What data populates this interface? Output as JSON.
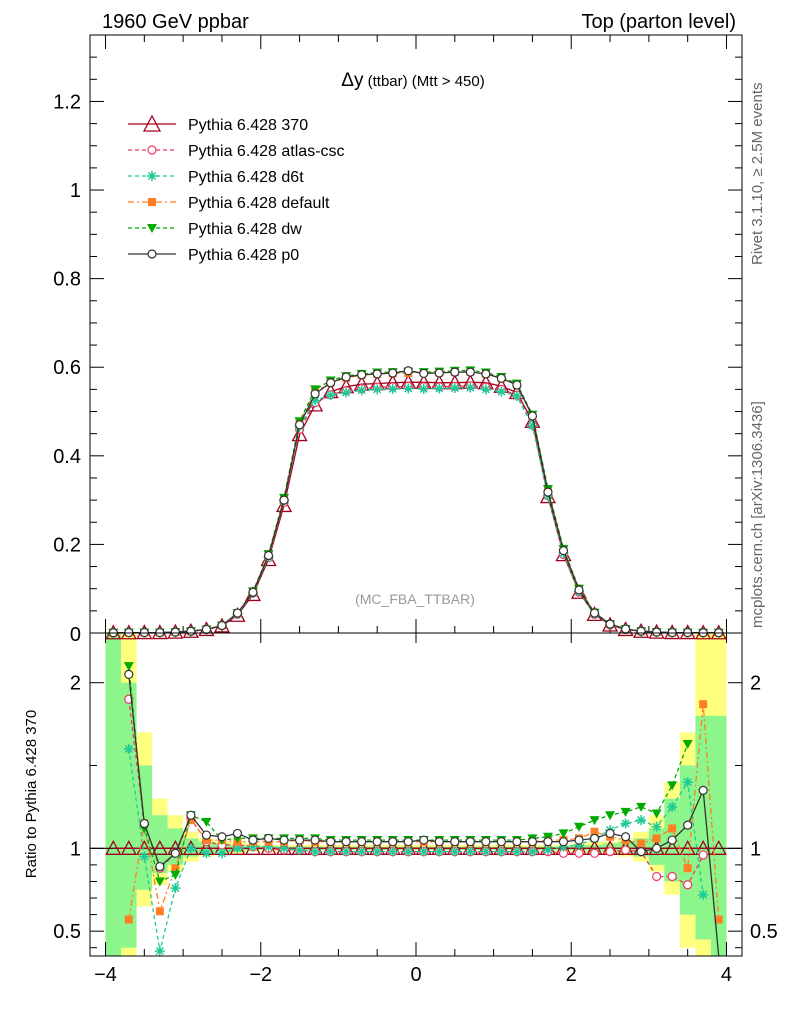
{
  "header": {
    "left": "1960 GeV ppbar",
    "right": "Top (parton level)"
  },
  "side_text": {
    "rivet": "Rivet 3.1.10, ≥ 2.5M events",
    "mcplots": "mcplots.cern.ch [arXiv:1306.3436]"
  },
  "chart_data": {
    "type": "line",
    "title_main": "Δy",
    "title_sub": " (ttbar) (Mtt > 450)",
    "watermark": "(MC_FBA_TTBAR)",
    "ratio_ylabel": "Ratio to Pythia 6.428 370",
    "xlim": [
      -4.2,
      4.2
    ],
    "ylim_main": [
      0,
      1.35
    ],
    "ylim_ratio": [
      0.35,
      2.3
    ],
    "x_ticks": [
      -4,
      -2,
      0,
      2,
      4
    ],
    "x_tick_labels": [
      "−4",
      "−2",
      "0",
      "2",
      "4"
    ],
    "main_y_ticks": [
      0.2,
      0.4,
      0.6,
      0.8,
      1,
      1.2
    ],
    "main_y_tick_labels": [
      "0.2",
      "0.4",
      "0.6",
      "0.8",
      "1",
      "1.2"
    ],
    "main_y_zero_label": "0",
    "ratio_y_ticks": [
      0.5,
      1,
      2
    ],
    "ratio_y_tick_labels": [
      "0.5",
      "1",
      "2"
    ],
    "x": [
      -3.9,
      -3.7,
      -3.5,
      -3.3,
      -3.1,
      -2.9,
      -2.7,
      -2.5,
      -2.3,
      -2.1,
      -1.9,
      -1.7,
      -1.5,
      -1.3,
      -1.1,
      -0.9,
      -0.7,
      -0.5,
      -0.3,
      -0.1,
      0.1,
      0.3,
      0.5,
      0.7,
      0.9,
      1.1,
      1.3,
      1.5,
      1.7,
      1.9,
      2.1,
      2.3,
      2.5,
      2.7,
      2.9,
      3.1,
      3.3,
      3.5,
      3.7,
      3.9
    ],
    "series": [
      {
        "name": "Pythia 6.428 370",
        "color": "#a0001e",
        "dash": "",
        "marker": "triangle-open",
        "values": [
          0.0005,
          0.0005,
          0.001,
          0.001,
          0.002,
          0.004,
          0.008,
          0.016,
          0.04,
          0.087,
          0.166,
          0.288,
          0.448,
          0.515,
          0.545,
          0.556,
          0.562,
          0.563,
          0.565,
          0.566,
          0.566,
          0.565,
          0.565,
          0.566,
          0.565,
          0.557,
          0.543,
          0.478,
          0.308,
          0.177,
          0.092,
          0.042,
          0.018,
          0.008,
          0.004,
          0.002,
          0.001,
          0.001,
          0.0005,
          0.0005
        ],
        "ratio": [
          1.0,
          1.0,
          1.0,
          1.0,
          1.0,
          1.0,
          1.0,
          1.0,
          1.0,
          1.0,
          1.0,
          1.0,
          1.0,
          1.0,
          1.0,
          1.0,
          1.0,
          1.0,
          1.0,
          1.0,
          1.0,
          1.0,
          1.0,
          1.0,
          1.0,
          1.0,
          1.0,
          1.0,
          1.0,
          1.0,
          1.0,
          1.0,
          1.0,
          1.0,
          1.0,
          1.0,
          1.0,
          1.0,
          1.0,
          1.0
        ]
      },
      {
        "name": "Pythia 6.428 atlas-csc",
        "color": "#ee3a5e",
        "dash": "4,3",
        "marker": "circle-open",
        "values": [
          0.0005,
          0.001,
          0.001,
          0.001,
          0.002,
          0.004,
          0.008,
          0.017,
          0.042,
          0.09,
          0.17,
          0.295,
          0.46,
          0.52,
          0.538,
          0.547,
          0.552,
          0.555,
          0.556,
          0.557,
          0.556,
          0.556,
          0.557,
          0.558,
          0.555,
          0.55,
          0.537,
          0.47,
          0.31,
          0.177,
          0.092,
          0.042,
          0.018,
          0.008,
          0.004,
          0.002,
          0.001,
          0.001,
          0.0005,
          0.0005
        ],
        "ratio": [
          null,
          1.9,
          1.15,
          0.88,
          0.97,
          1.18,
          1.04,
          1.02,
          1.02,
          1.01,
          1.0,
          0.99,
          0.99,
          0.98,
          0.98,
          0.98,
          0.98,
          0.98,
          0.98,
          0.98,
          0.98,
          0.98,
          0.98,
          0.98,
          0.98,
          0.98,
          0.98,
          0.98,
          0.98,
          0.97,
          0.97,
          0.97,
          0.98,
          0.99,
          0.98,
          0.83,
          0.83,
          0.78,
          0.96,
          null
        ]
      },
      {
        "name": "Pythia 6.428 d6t",
        "color": "#1dc997",
        "dash": "4,3",
        "marker": "star",
        "values": [
          0.0005,
          0.001,
          0.001,
          0.001,
          0.002,
          0.004,
          0.008,
          0.017,
          0.043,
          0.09,
          0.172,
          0.3,
          0.466,
          0.525,
          0.537,
          0.543,
          0.548,
          0.55,
          0.551,
          0.552,
          0.551,
          0.552,
          0.553,
          0.554,
          0.55,
          0.545,
          0.535,
          0.468,
          0.31,
          0.18,
          0.094,
          0.043,
          0.019,
          0.009,
          0.004,
          0.002,
          0.001,
          0.001,
          0.0005,
          0.0005
        ],
        "ratio": [
          null,
          1.6,
          0.95,
          0.38,
          0.76,
          1.0,
          0.97,
          0.97,
          1.0,
          1.01,
          1.01,
          1.0,
          0.99,
          0.98,
          0.98,
          0.98,
          0.98,
          0.98,
          0.98,
          0.98,
          0.98,
          0.98,
          0.98,
          0.98,
          0.98,
          0.98,
          0.98,
          0.98,
          0.99,
          1.01,
          1.02,
          1.06,
          1.11,
          1.15,
          1.17,
          1.13,
          1.25,
          1.4,
          0.72,
          null
        ]
      },
      {
        "name": "Pythia 6.428 default",
        "color": "#ff7f27",
        "dash": "6,3,2,3",
        "marker": "square",
        "values": [
          0.0005,
          0.001,
          0.001,
          0.001,
          0.002,
          0.004,
          0.008,
          0.017,
          0.045,
          0.093,
          0.178,
          0.305,
          0.475,
          0.545,
          0.565,
          0.576,
          0.582,
          0.585,
          0.586,
          0.587,
          0.588,
          0.588,
          0.589,
          0.59,
          0.585,
          0.575,
          0.56,
          0.49,
          0.322,
          0.188,
          0.1,
          0.046,
          0.02,
          0.009,
          0.004,
          0.002,
          0.001,
          0.001,
          0.001,
          0.001
        ],
        "ratio": [
          null,
          0.57,
          1.15,
          0.62,
          0.88,
          1.17,
          1.05,
          1.05,
          1.04,
          1.04,
          1.04,
          1.04,
          1.05,
          1.04,
          1.04,
          1.04,
          1.04,
          1.04,
          1.04,
          1.04,
          1.04,
          1.04,
          1.04,
          1.04,
          1.04,
          1.04,
          1.04,
          1.04,
          1.05,
          1.05,
          1.06,
          1.1,
          1.07,
          1.05,
          1.03,
          1.06,
          1.12,
          0.88,
          1.87,
          0.57
        ]
      },
      {
        "name": "Pythia 6.428 dw",
        "color": "#00aa00",
        "dash": "4,3",
        "marker": "triangle-down",
        "values": [
          0.0005,
          0.001,
          0.001,
          0.001,
          0.002,
          0.004,
          0.008,
          0.017,
          0.045,
          0.094,
          0.178,
          0.305,
          0.478,
          0.55,
          0.57,
          0.58,
          0.585,
          0.588,
          0.589,
          0.59,
          0.589,
          0.59,
          0.592,
          0.593,
          0.588,
          0.578,
          0.563,
          0.493,
          0.325,
          0.19,
          0.1,
          0.046,
          0.02,
          0.009,
          0.004,
          0.002,
          0.001,
          0.001,
          0.0005,
          0.0005
        ],
        "ratio": [
          null,
          2.1,
          1.12,
          0.8,
          0.84,
          1.2,
          1.16,
          1.05,
          1.06,
          1.06,
          1.06,
          1.06,
          1.06,
          1.06,
          1.05,
          1.05,
          1.05,
          1.05,
          1.05,
          1.05,
          1.05,
          1.05,
          1.05,
          1.05,
          1.05,
          1.05,
          1.05,
          1.06,
          1.07,
          1.09,
          1.13,
          1.17,
          1.2,
          1.22,
          1.25,
          1.21,
          1.38,
          1.63,
          null,
          null
        ]
      },
      {
        "name": "Pythia 6.428 p0",
        "color": "#333333",
        "dash": "",
        "marker": "circle-open",
        "values": [
          0.0005,
          0.001,
          0.001,
          0.001,
          0.002,
          0.004,
          0.008,
          0.017,
          0.045,
          0.092,
          0.175,
          0.3,
          0.47,
          0.54,
          0.565,
          0.578,
          0.583,
          0.585,
          0.587,
          0.592,
          0.586,
          0.587,
          0.589,
          0.589,
          0.585,
          0.575,
          0.56,
          0.49,
          0.318,
          0.186,
          0.097,
          0.045,
          0.02,
          0.009,
          0.004,
          0.002,
          0.001,
          0.001,
          0.0005,
          0.0005
        ],
        "ratio": [
          null,
          2.05,
          1.15,
          0.89,
          0.97,
          1.2,
          1.08,
          1.07,
          1.09,
          1.05,
          1.06,
          1.05,
          1.05,
          1.05,
          1.04,
          1.04,
          1.04,
          1.04,
          1.04,
          1.04,
          1.05,
          1.04,
          1.04,
          1.04,
          1.04,
          1.04,
          1.04,
          1.04,
          1.04,
          1.04,
          1.05,
          1.06,
          1.09,
          1.07,
          0.98,
          1.0,
          1.05,
          1.14,
          1.35,
          0.3
        ]
      }
    ],
    "ratio_band_yellow": [
      [
        0.2,
        2.3
      ],
      [
        0.3,
        2.3
      ],
      [
        0.65,
        1.7
      ],
      [
        0.78,
        1.3
      ],
      [
        0.86,
        1.2
      ],
      [
        0.92,
        1.1
      ],
      [
        0.95,
        1.06
      ],
      [
        0.97,
        1.04
      ],
      [
        0.97,
        1.04
      ],
      [
        0.98,
        1.03
      ],
      [
        0.98,
        1.02
      ],
      [
        0.98,
        1.02
      ],
      [
        0.99,
        1.02
      ],
      [
        0.99,
        1.02
      ],
      [
        0.99,
        1.02
      ],
      [
        0.99,
        1.02
      ],
      [
        0.99,
        1.02
      ],
      [
        0.99,
        1.02
      ],
      [
        0.99,
        1.02
      ],
      [
        0.99,
        1.02
      ],
      [
        0.99,
        1.02
      ],
      [
        0.99,
        1.02
      ],
      [
        0.99,
        1.02
      ],
      [
        0.99,
        1.02
      ],
      [
        0.99,
        1.02
      ],
      [
        0.99,
        1.02
      ],
      [
        0.99,
        1.02
      ],
      [
        0.99,
        1.02
      ],
      [
        0.98,
        1.02
      ],
      [
        0.98,
        1.02
      ],
      [
        0.98,
        1.03
      ],
      [
        0.97,
        1.04
      ],
      [
        0.97,
        1.04
      ],
      [
        0.95,
        1.06
      ],
      [
        0.92,
        1.1
      ],
      [
        0.86,
        1.2
      ],
      [
        0.72,
        1.4
      ],
      [
        0.4,
        1.7
      ],
      [
        0.3,
        2.3
      ],
      [
        0.2,
        2.3
      ]
    ],
    "ratio_band_green": [
      [
        0.3,
        2.3
      ],
      [
        0.4,
        2.0
      ],
      [
        0.75,
        1.5
      ],
      [
        0.85,
        1.2
      ],
      [
        0.9,
        1.12
      ],
      [
        0.95,
        1.06
      ],
      [
        0.97,
        1.04
      ],
      [
        0.98,
        1.03
      ],
      [
        0.98,
        1.02
      ],
      [
        0.99,
        1.02
      ],
      [
        0.99,
        1.01
      ],
      [
        0.99,
        1.01
      ],
      [
        0.99,
        1.01
      ],
      [
        0.99,
        1.01
      ],
      [
        0.99,
        1.01
      ],
      [
        0.99,
        1.01
      ],
      [
        0.99,
        1.01
      ],
      [
        0.99,
        1.01
      ],
      [
        0.99,
        1.01
      ],
      [
        0.99,
        1.01
      ],
      [
        0.99,
        1.01
      ],
      [
        0.99,
        1.01
      ],
      [
        0.99,
        1.01
      ],
      [
        0.99,
        1.01
      ],
      [
        0.99,
        1.01
      ],
      [
        0.99,
        1.01
      ],
      [
        0.99,
        1.01
      ],
      [
        0.99,
        1.01
      ],
      [
        0.99,
        1.01
      ],
      [
        0.99,
        1.01
      ],
      [
        0.99,
        1.02
      ],
      [
        0.98,
        1.02
      ],
      [
        0.98,
        1.03
      ],
      [
        0.97,
        1.04
      ],
      [
        0.95,
        1.06
      ],
      [
        0.9,
        1.12
      ],
      [
        0.8,
        1.3
      ],
      [
        0.6,
        1.5
      ],
      [
        0.45,
        1.8
      ],
      [
        0.3,
        1.8
      ]
    ]
  }
}
